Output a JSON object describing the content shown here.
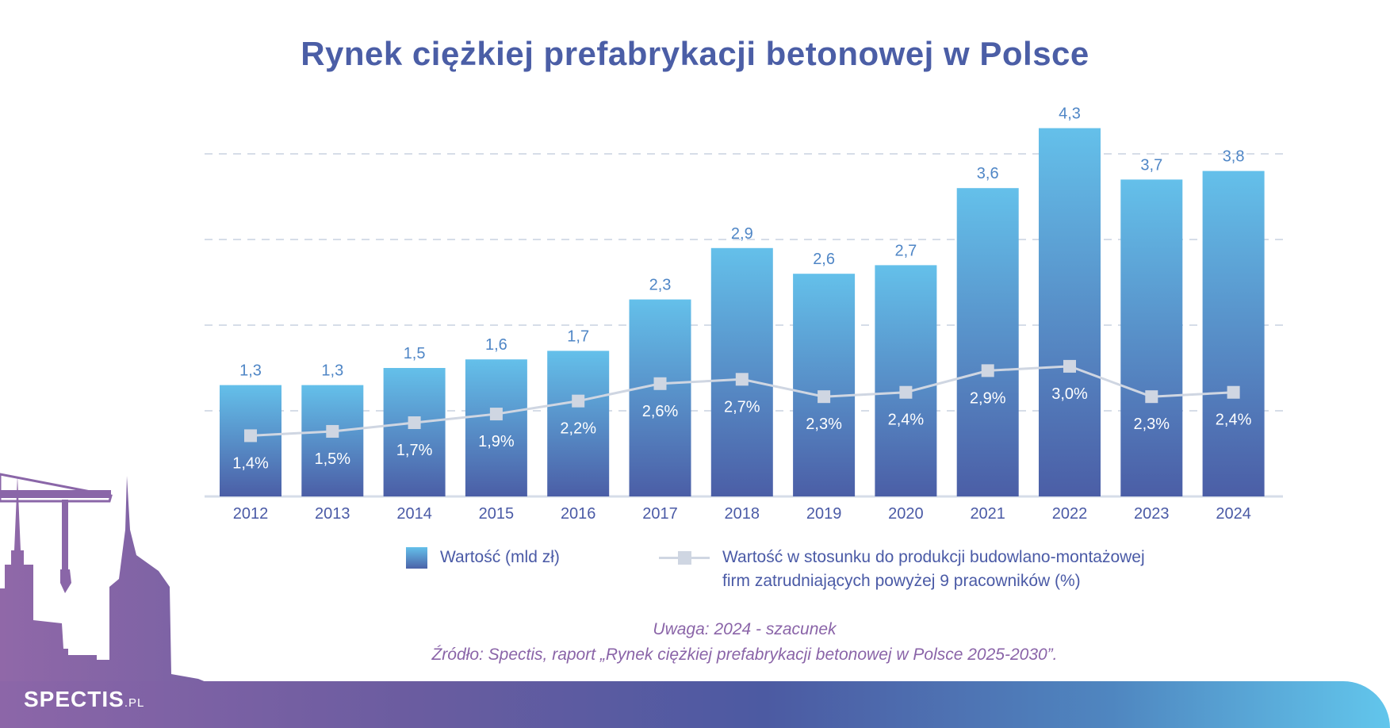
{
  "chart_data": {
    "type": "bar",
    "title": "Rynek ciężkiej prefabrykacji betonowej w Polsce",
    "categories": [
      "2012",
      "2013",
      "2014",
      "2015",
      "2016",
      "2017",
      "2018",
      "2019",
      "2020",
      "2021",
      "2022",
      "2023",
      "2024"
    ],
    "series": [
      {
        "name": "Wartość (mld zł)",
        "type": "bar",
        "values": [
          1.3,
          1.3,
          1.5,
          1.6,
          1.7,
          2.3,
          2.9,
          2.6,
          2.7,
          3.6,
          4.3,
          3.7,
          3.8
        ],
        "labels": [
          "1,3",
          "1,3",
          "1,5",
          "1,6",
          "1,7",
          "2,3",
          "2,9",
          "2,6",
          "2,7",
          "3,6",
          "4,3",
          "3,7",
          "3,8"
        ]
      },
      {
        "name": "Wartość w stosunku do produkcji budowlano-montażowej firm zatrudniających powyżej 9 pracowników (%)",
        "type": "line",
        "values": [
          1.4,
          1.5,
          1.7,
          1.9,
          2.2,
          2.6,
          2.7,
          2.3,
          2.4,
          2.9,
          3.0,
          2.3,
          2.4
        ],
        "labels": [
          "1,4%",
          "1,5%",
          "1,7%",
          "1,9%",
          "2,2%",
          "2,6%",
          "2,7%",
          "2,3%",
          "2,4%",
          "2,9%",
          "3,0%",
          "2,3%",
          "2,4%"
        ]
      }
    ],
    "ylim": [
      0,
      4
    ],
    "gridlines": [
      1,
      2,
      3,
      4
    ],
    "grid": true,
    "legend": "bottom"
  },
  "legend": {
    "bar_label": "Wartość (mld zł)",
    "line_label_1": "Wartość w stosunku do produkcji budowlano-montażowej",
    "line_label_2": "firm zatrudniających powyżej 9 pracowników (%)"
  },
  "notes": {
    "remark": "Uwaga: 2024 - szacunek",
    "source": "Źródło: Spectis, raport „Rynek ciężkiej prefabrykacji betonowej w Polsce 2025-2030”."
  },
  "logo": {
    "main": "SPECTIS",
    "suffix": ".PL"
  },
  "colors": {
    "title": "#4b5ea6",
    "bar_top": "#64c0ea",
    "bar_bottom": "#4b5ea6",
    "line": "#cfd6e2",
    "note": "#8a64a8"
  }
}
